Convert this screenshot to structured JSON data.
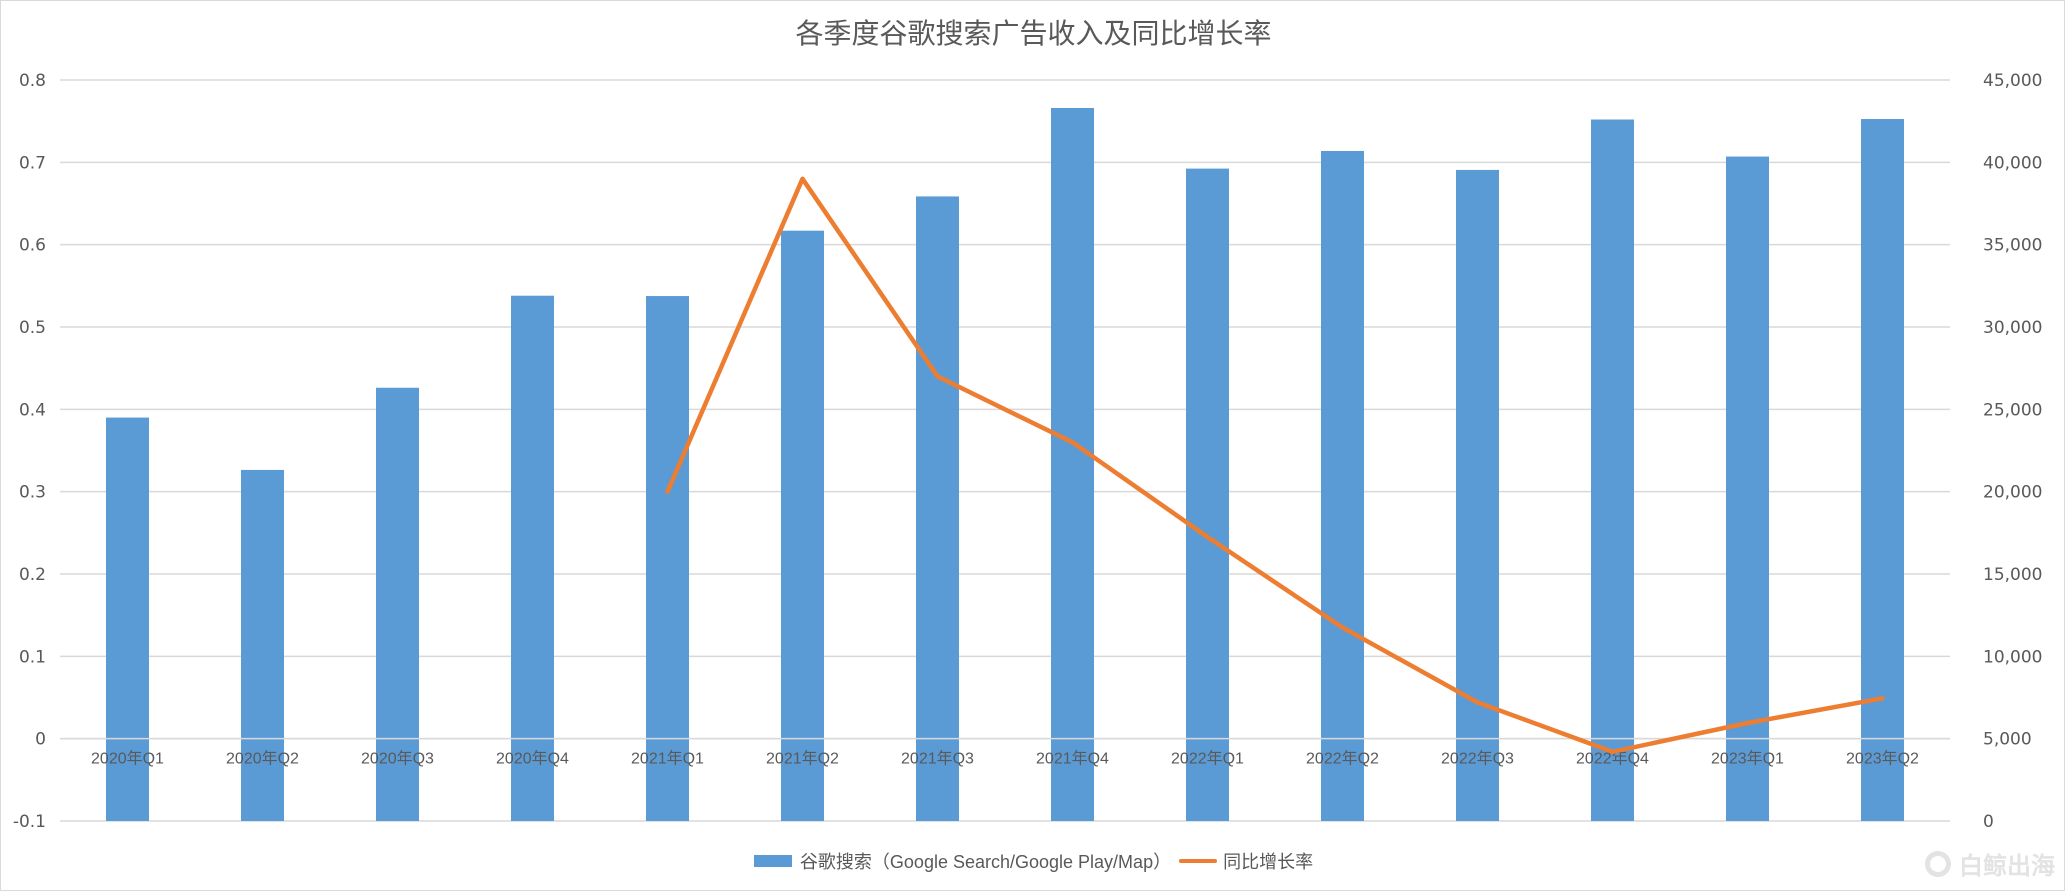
{
  "chart_data": {
    "type": "bar+line",
    "title": "各季度谷歌搜索广告收入及同比增长率",
    "categories": [
      "2020年Q1",
      "2020年Q2",
      "2020年Q3",
      "2020年Q4",
      "2021年Q1",
      "2021年Q2",
      "2021年Q3",
      "2021年Q4",
      "2022年Q1",
      "2022年Q2",
      "2022年Q3",
      "2022年Q4",
      "2023年Q1",
      "2023年Q2"
    ],
    "series": [
      {
        "name": "谷歌搜索（Google Search/Google Play/Map）",
        "type": "bar",
        "axis": "right",
        "color": "#5b9bd5",
        "values": [
          24500,
          21320,
          26310,
          31900,
          31880,
          35850,
          37930,
          43300,
          39620,
          40690,
          39540,
          42600,
          40350,
          42630
        ]
      },
      {
        "name": "同比增长率",
        "type": "line",
        "axis": "left",
        "color": "#ed7d31",
        "values": [
          null,
          null,
          null,
          null,
          0.3,
          0.68,
          0.44,
          0.36,
          0.245,
          0.135,
          0.044,
          -0.016,
          0.019,
          0.049
        ]
      }
    ],
    "left_axis": {
      "ylim": [
        -0.1,
        0.8
      ],
      "ticks": [
        "0.8",
        "0.7",
        "0.6",
        "0.5",
        "0.4",
        "0.3",
        "0.2",
        "0.1",
        "0",
        "-0.1"
      ]
    },
    "right_axis": {
      "ylim": [
        0,
        45000
      ],
      "ticks": [
        "45,000",
        "40,000",
        "35,000",
        "30,000",
        "25,000",
        "20,000",
        "15,000",
        "10,000",
        "5,000",
        "0"
      ]
    },
    "grid": true,
    "legend_position": "bottom"
  },
  "legend": {
    "bar_label": "谷歌搜索（Google Search/Google Play/Map）",
    "line_label": "同比增长率"
  },
  "watermark": "白鲸出海"
}
